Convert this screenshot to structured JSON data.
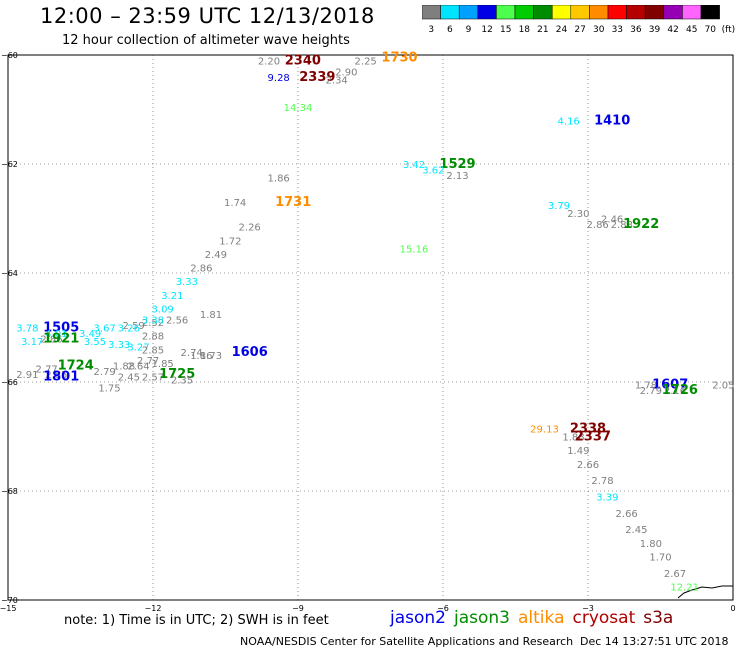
{
  "title": "12:00 – 23:59 UTC 12/13/2018",
  "subtitle": "12 hour collection of altimeter wave heights",
  "colorbar": {
    "unit": "(ft)",
    "entries": [
      {
        "label": "3",
        "color": "#7f7f7f"
      },
      {
        "label": "6",
        "color": "#00e5ff"
      },
      {
        "label": "9",
        "color": "#00a0ff"
      },
      {
        "label": "12",
        "color": "#0000e6"
      },
      {
        "label": "15",
        "color": "#4cff4c"
      },
      {
        "label": "18",
        "color": "#00cc00"
      },
      {
        "label": "21",
        "color": "#008c00"
      },
      {
        "label": "24",
        "color": "#ffff00"
      },
      {
        "label": "27",
        "color": "#ffc800"
      },
      {
        "label": "30",
        "color": "#ff8c00"
      },
      {
        "label": "33",
        "color": "#ff0000"
      },
      {
        "label": "36",
        "color": "#b40000"
      },
      {
        "label": "39",
        "color": "#800000"
      },
      {
        "label": "42",
        "color": "#9600b4"
      },
      {
        "label": "45",
        "color": "#ff64ff"
      },
      {
        "label": "70",
        "color": "#000000"
      }
    ]
  },
  "axes": {
    "x_ticks": [
      "−15",
      "−12",
      "−9",
      "−6",
      "−3",
      "0"
    ],
    "y_ticks": [
      "−70",
      "−68",
      "−66",
      "−64",
      "−62",
      "−60"
    ]
  },
  "chart_data": {
    "type": "scatter",
    "xlabel": "",
    "ylabel": "",
    "xlim": [
      -15,
      0
    ],
    "ylim": [
      -70,
      -60
    ],
    "grid": true,
    "points": [
      {
        "lon": -9.6,
        "lat": -60.1,
        "text": "2.20",
        "color": "#7f7f7f",
        "kind": "wave"
      },
      {
        "lon": -8.9,
        "lat": -60.1,
        "text": "2340",
        "color": "#800000",
        "kind": "time"
      },
      {
        "lon": -7.6,
        "lat": -60.1,
        "text": "2.25",
        "color": "#7f7f7f",
        "kind": "wave"
      },
      {
        "lon": -6.9,
        "lat": -60.05,
        "text": "1730",
        "color": "#ff8c00",
        "kind": "time"
      },
      {
        "lon": -8.0,
        "lat": -60.3,
        "text": "2.90",
        "color": "#7f7f7f",
        "kind": "wave"
      },
      {
        "lon": -9.4,
        "lat": -60.4,
        "text": "9.28",
        "color": "#0000e6",
        "kind": "wave"
      },
      {
        "lon": -8.6,
        "lat": -60.4,
        "text": "2339",
        "color": "#800000",
        "kind": "time"
      },
      {
        "lon": -8.2,
        "lat": -60.45,
        "text": "2.34",
        "color": "#7f7f7f",
        "kind": "wave"
      },
      {
        "lon": -9.0,
        "lat": -60.95,
        "text": "14.34",
        "color": "#4cff4c",
        "kind": "wave"
      },
      {
        "lon": -3.4,
        "lat": -61.2,
        "text": "4.16",
        "color": "#00e5ff",
        "kind": "wave"
      },
      {
        "lon": -2.5,
        "lat": -61.2,
        "text": "1410",
        "color": "#0000e6",
        "kind": "time"
      },
      {
        "lon": -6.6,
        "lat": -62.0,
        "text": "3.42",
        "color": "#00e5ff",
        "kind": "wave"
      },
      {
        "lon": -5.7,
        "lat": -62.0,
        "text": "1529",
        "color": "#008c00",
        "kind": "time"
      },
      {
        "lon": -6.2,
        "lat": -62.1,
        "text": "3.62",
        "color": "#00e5ff",
        "kind": "wave"
      },
      {
        "lon": -5.7,
        "lat": -62.2,
        "text": "2.13",
        "color": "#7f7f7f",
        "kind": "wave"
      },
      {
        "lon": -9.4,
        "lat": -62.25,
        "text": "1.86",
        "color": "#7f7f7f",
        "kind": "wave"
      },
      {
        "lon": -10.3,
        "lat": -62.7,
        "text": "1.74",
        "color": "#7f7f7f",
        "kind": "wave"
      },
      {
        "lon": -9.1,
        "lat": -62.7,
        "text": "1731",
        "color": "#ff8c00",
        "kind": "time"
      },
      {
        "lon": -3.6,
        "lat": -62.75,
        "text": "3.79",
        "color": "#00e5ff",
        "kind": "wave"
      },
      {
        "lon": -3.2,
        "lat": -62.9,
        "text": "2.30",
        "color": "#7f7f7f",
        "kind": "wave"
      },
      {
        "lon": -2.5,
        "lat": -63.0,
        "text": "2.46",
        "color": "#7f7f7f",
        "kind": "wave"
      },
      {
        "lon": -2.8,
        "lat": -63.1,
        "text": "2.86",
        "color": "#7f7f7f",
        "kind": "wave"
      },
      {
        "lon": -2.3,
        "lat": -63.1,
        "text": "2.88",
        "color": "#7f7f7f",
        "kind": "wave"
      },
      {
        "lon": -1.9,
        "lat": -63.1,
        "text": "1922",
        "color": "#008c00",
        "kind": "time"
      },
      {
        "lon": -10.0,
        "lat": -63.15,
        "text": "2.26",
        "color": "#7f7f7f",
        "kind": "wave"
      },
      {
        "lon": -10.4,
        "lat": -63.4,
        "text": "1.72",
        "color": "#7f7f7f",
        "kind": "wave"
      },
      {
        "lon": -6.6,
        "lat": -63.55,
        "text": "15.16",
        "color": "#4cff4c",
        "kind": "wave"
      },
      {
        "lon": -10.7,
        "lat": -63.65,
        "text": "2.49",
        "color": "#7f7f7f",
        "kind": "wave"
      },
      {
        "lon": -11.0,
        "lat": -63.9,
        "text": "2.86",
        "color": "#7f7f7f",
        "kind": "wave"
      },
      {
        "lon": -11.3,
        "lat": -64.15,
        "text": "3.33",
        "color": "#00e5ff",
        "kind": "wave"
      },
      {
        "lon": -11.6,
        "lat": -64.4,
        "text": "3.21",
        "color": "#00e5ff",
        "kind": "wave"
      },
      {
        "lon": -11.8,
        "lat": -64.65,
        "text": "3.09",
        "color": "#00e5ff",
        "kind": "wave"
      },
      {
        "lon": -10.8,
        "lat": -64.75,
        "text": "1.81",
        "color": "#7f7f7f",
        "kind": "wave"
      },
      {
        "lon": -11.5,
        "lat": -64.85,
        "text": "2.56",
        "color": "#7f7f7f",
        "kind": "wave"
      },
      {
        "lon": -12.0,
        "lat": -64.9,
        "text": "2.52",
        "color": "#7f7f7f",
        "kind": "wave"
      },
      {
        "lon": -12.0,
        "lat": -64.85,
        "text": "3.38",
        "color": "#00e5ff",
        "kind": "wave"
      },
      {
        "lon": -12.4,
        "lat": -64.95,
        "text": "2.59",
        "color": "#7f7f7f",
        "kind": "wave"
      },
      {
        "lon": -14.6,
        "lat": -65.0,
        "text": "3.78",
        "color": "#00e5ff",
        "kind": "wave"
      },
      {
        "lon": -13.9,
        "lat": -65.0,
        "text": "1505",
        "color": "#0000e6",
        "kind": "time"
      },
      {
        "lon": -13.0,
        "lat": -65.0,
        "text": "3.67",
        "color": "#00e5ff",
        "kind": "wave"
      },
      {
        "lon": -12.5,
        "lat": -65.0,
        "text": "3.26",
        "color": "#00e5ff",
        "kind": "wave"
      },
      {
        "lon": -14.0,
        "lat": -65.1,
        "text": "4.01",
        "color": "#00e5ff",
        "kind": "wave"
      },
      {
        "lon": -13.3,
        "lat": -65.1,
        "text": "3.49",
        "color": "#00e5ff",
        "kind": "wave"
      },
      {
        "lon": -12.0,
        "lat": -65.15,
        "text": "2.88",
        "color": "#7f7f7f",
        "kind": "wave"
      },
      {
        "lon": -14.1,
        "lat": -65.2,
        "text": "2.86",
        "color": "#7f7f7f",
        "kind": "wave"
      },
      {
        "lon": -13.9,
        "lat": -65.2,
        "text": "1921",
        "color": "#008c00",
        "kind": "time"
      },
      {
        "lon": -14.5,
        "lat": -65.25,
        "text": "3.17",
        "color": "#00e5ff",
        "kind": "wave"
      },
      {
        "lon": -13.2,
        "lat": -65.25,
        "text": "3.55",
        "color": "#00e5ff",
        "kind": "wave"
      },
      {
        "lon": -12.7,
        "lat": -65.3,
        "text": "3.33",
        "color": "#00e5ff",
        "kind": "wave"
      },
      {
        "lon": -12.3,
        "lat": -65.35,
        "text": "3.27",
        "color": "#00e5ff",
        "kind": "wave"
      },
      {
        "lon": -12.0,
        "lat": -65.4,
        "text": "2.85",
        "color": "#7f7f7f",
        "kind": "wave"
      },
      {
        "lon": -11.2,
        "lat": -65.45,
        "text": "2.74",
        "color": "#7f7f7f",
        "kind": "wave"
      },
      {
        "lon": -10.8,
        "lat": -65.5,
        "text": "1.73",
        "color": "#7f7f7f",
        "kind": "wave"
      },
      {
        "lon": -11.0,
        "lat": -65.5,
        "text": "1.86",
        "color": "#7f7f7f",
        "kind": "wave"
      },
      {
        "lon": -10.0,
        "lat": -65.45,
        "text": "1606",
        "color": "#0000e6",
        "kind": "time"
      },
      {
        "lon": -12.1,
        "lat": -65.6,
        "text": "2.77",
        "color": "#7f7f7f",
        "kind": "wave"
      },
      {
        "lon": -11.8,
        "lat": -65.65,
        "text": "1.85",
        "color": "#7f7f7f",
        "kind": "wave"
      },
      {
        "lon": -12.6,
        "lat": -65.7,
        "text": "1.88",
        "color": "#7f7f7f",
        "kind": "wave"
      },
      {
        "lon": -12.3,
        "lat": -65.7,
        "text": "2.64",
        "color": "#7f7f7f",
        "kind": "wave"
      },
      {
        "lon": -14.2,
        "lat": -65.75,
        "text": "2.77",
        "color": "#7f7f7f",
        "kind": "wave"
      },
      {
        "lon": -13.6,
        "lat": -65.7,
        "text": "1724",
        "color": "#008c00",
        "kind": "time"
      },
      {
        "lon": -13.0,
        "lat": -65.8,
        "text": "2.79",
        "color": "#7f7f7f",
        "kind": "wave"
      },
      {
        "lon": -14.6,
        "lat": -65.85,
        "text": "2.91",
        "color": "#7f7f7f",
        "kind": "wave"
      },
      {
        "lon": -14.0,
        "lat": -65.85,
        "text": "2.85",
        "color": "#7f7f7f",
        "kind": "wave"
      },
      {
        "lon": -13.9,
        "lat": -65.9,
        "text": "1801",
        "color": "#0000e6",
        "kind": "time"
      },
      {
        "lon": -12.5,
        "lat": -65.9,
        "text": "2.45",
        "color": "#7f7f7f",
        "kind": "wave"
      },
      {
        "lon": -12.0,
        "lat": -65.9,
        "text": "2.57",
        "color": "#7f7f7f",
        "kind": "wave"
      },
      {
        "lon": -11.5,
        "lat": -65.85,
        "text": "1725",
        "color": "#008c00",
        "kind": "time"
      },
      {
        "lon": -11.4,
        "lat": -65.95,
        "text": "2.35",
        "color": "#7f7f7f",
        "kind": "wave"
      },
      {
        "lon": -12.9,
        "lat": -66.1,
        "text": "1.75",
        "color": "#7f7f7f",
        "kind": "wave"
      },
      {
        "lon": -1.8,
        "lat": -66.05,
        "text": "1.78",
        "color": "#7f7f7f",
        "kind": "wave"
      },
      {
        "lon": -1.3,
        "lat": -66.05,
        "text": "1607",
        "color": "#0000e6",
        "kind": "time"
      },
      {
        "lon": -0.2,
        "lat": -66.05,
        "text": "2.05",
        "color": "#7f7f7f",
        "kind": "wave"
      },
      {
        "lon": -1.7,
        "lat": -66.15,
        "text": "2.79",
        "color": "#7f7f7f",
        "kind": "wave"
      },
      {
        "lon": -1.2,
        "lat": -66.15,
        "text": "2.16",
        "color": "#7f7f7f",
        "kind": "wave"
      },
      {
        "lon": -1.1,
        "lat": -66.15,
        "text": "1726",
        "color": "#008c00",
        "kind": "time"
      },
      {
        "lon": -3.9,
        "lat": -66.85,
        "text": "29.13",
        "color": "#ff8c00",
        "kind": "wave"
      },
      {
        "lon": -3.0,
        "lat": -66.85,
        "text": "2338",
        "color": "#800000",
        "kind": "time"
      },
      {
        "lon": -3.3,
        "lat": -67.0,
        "text": "1.88",
        "color": "#7f7f7f",
        "kind": "wave"
      },
      {
        "lon": -2.9,
        "lat": -67.0,
        "text": "2337",
        "color": "#800000",
        "kind": "time"
      },
      {
        "lon": -3.2,
        "lat": -67.25,
        "text": "1.49",
        "color": "#7f7f7f",
        "kind": "wave"
      },
      {
        "lon": -3.0,
        "lat": -67.5,
        "text": "2.66",
        "color": "#7f7f7f",
        "kind": "wave"
      },
      {
        "lon": -2.7,
        "lat": -67.8,
        "text": "2.78",
        "color": "#7f7f7f",
        "kind": "wave"
      },
      {
        "lon": -2.6,
        "lat": -68.1,
        "text": "3.39",
        "color": "#00e5ff",
        "kind": "wave"
      },
      {
        "lon": -2.2,
        "lat": -68.4,
        "text": "2.66",
        "color": "#7f7f7f",
        "kind": "wave"
      },
      {
        "lon": -2.0,
        "lat": -68.7,
        "text": "2.45",
        "color": "#7f7f7f",
        "kind": "wave"
      },
      {
        "lon": -1.7,
        "lat": -68.95,
        "text": "1.80",
        "color": "#7f7f7f",
        "kind": "wave"
      },
      {
        "lon": -1.5,
        "lat": -69.2,
        "text": "1.70",
        "color": "#7f7f7f",
        "kind": "wave"
      },
      {
        "lon": -1.2,
        "lat": -69.5,
        "text": "2.67",
        "color": "#7f7f7f",
        "kind": "wave"
      },
      {
        "lon": -1.0,
        "lat": -69.75,
        "text": "12.21",
        "color": "#4cff4c",
        "kind": "wave"
      }
    ]
  },
  "footnote": "note:  1) Time is in UTC;  2) SWH is in feet",
  "satellites": [
    {
      "name": "jason2",
      "color": "#0000e6"
    },
    {
      "name": "jason3",
      "color": "#008c00"
    },
    {
      "name": "altika",
      "color": "#ff8c00"
    },
    {
      "name": "cryosat",
      "color": "#b40000"
    },
    {
      "name": "s3a",
      "color": "#800000"
    }
  ],
  "credit": "NOAA/NESDIS Center for Satellite Applications and Research",
  "credit_time": "Dec 14 13:27:51 UTC 2018"
}
